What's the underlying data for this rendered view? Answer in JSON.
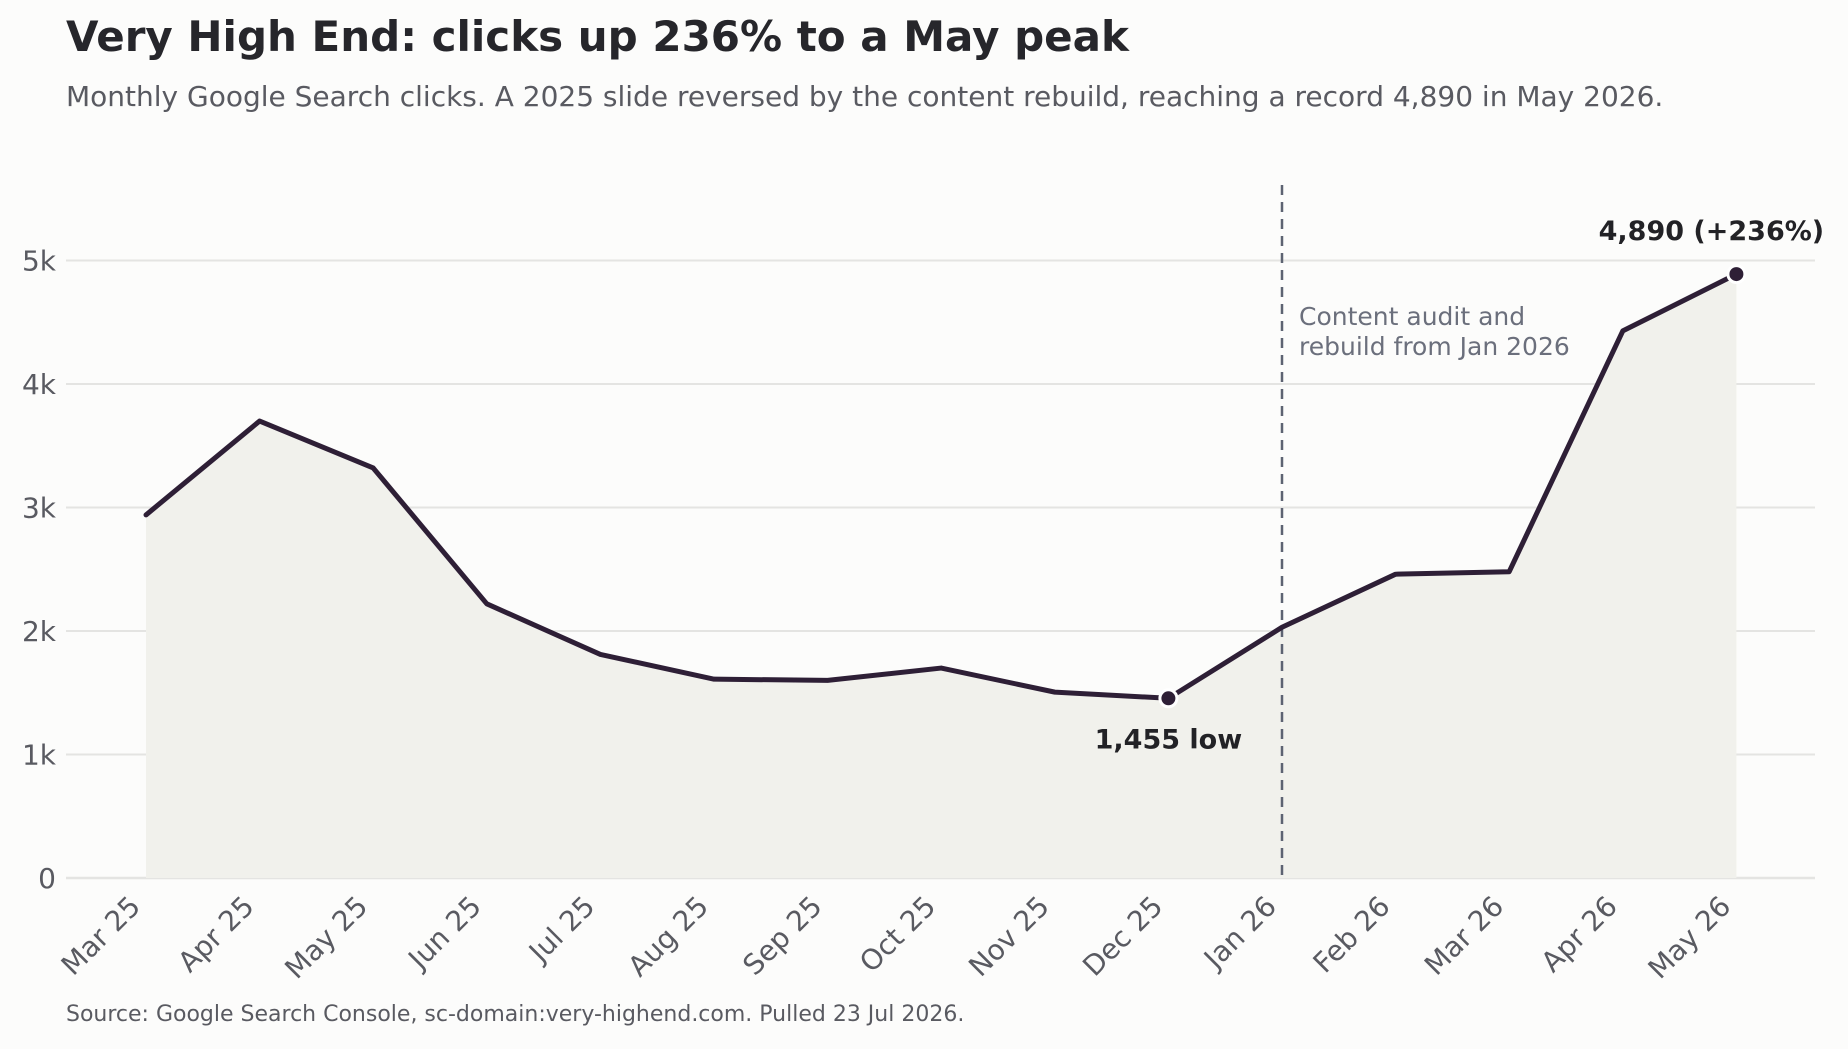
{
  "chart_data": {
    "type": "area",
    "title": "Very High End: clicks up 236% to a May peak",
    "subtitle": "Monthly Google Search clicks. A 2025 slide reversed by the content rebuild, reaching a record 4,890 in May 2026.",
    "source": "Source: Google Search Console, sc-domain:very-highend.com. Pulled 23 Jul 2026.",
    "categories": [
      "Mar 25",
      "Apr 25",
      "May 25",
      "Jun 25",
      "Jul 25",
      "Aug 25",
      "Sep 25",
      "Oct 25",
      "Nov 25",
      "Dec 25",
      "Jan 26",
      "Feb 26",
      "Mar 26",
      "Apr 26",
      "May 26"
    ],
    "series": [
      {
        "values": [
          2940,
          3700,
          3320,
          2220,
          1810,
          1610,
          1600,
          1700,
          1505,
          1455,
          2030,
          2460,
          2480,
          4430,
          4890
        ]
      }
    ],
    "ylim": [
      0,
      5600
    ],
    "yticks": [
      0,
      1000,
      2000,
      3000,
      4000,
      5000
    ],
    "ytick_labels": [
      "0",
      "1k",
      "2k",
      "3k",
      "4k",
      "5k"
    ],
    "grid": true,
    "annotations": {
      "low": {
        "index": 9,
        "label": "1,455 low"
      },
      "peak": {
        "index": 14,
        "label": "4,890 (+236%)"
      },
      "marker": {
        "index": 10,
        "lines": [
          "Content audit and",
          "rebuild from Jan 2026"
        ]
      }
    },
    "colors": {
      "line": "#2e1f36",
      "fill": "#f1f1ec",
      "grid": "#e4e4e2",
      "marker_line": "#5d6372"
    }
  }
}
